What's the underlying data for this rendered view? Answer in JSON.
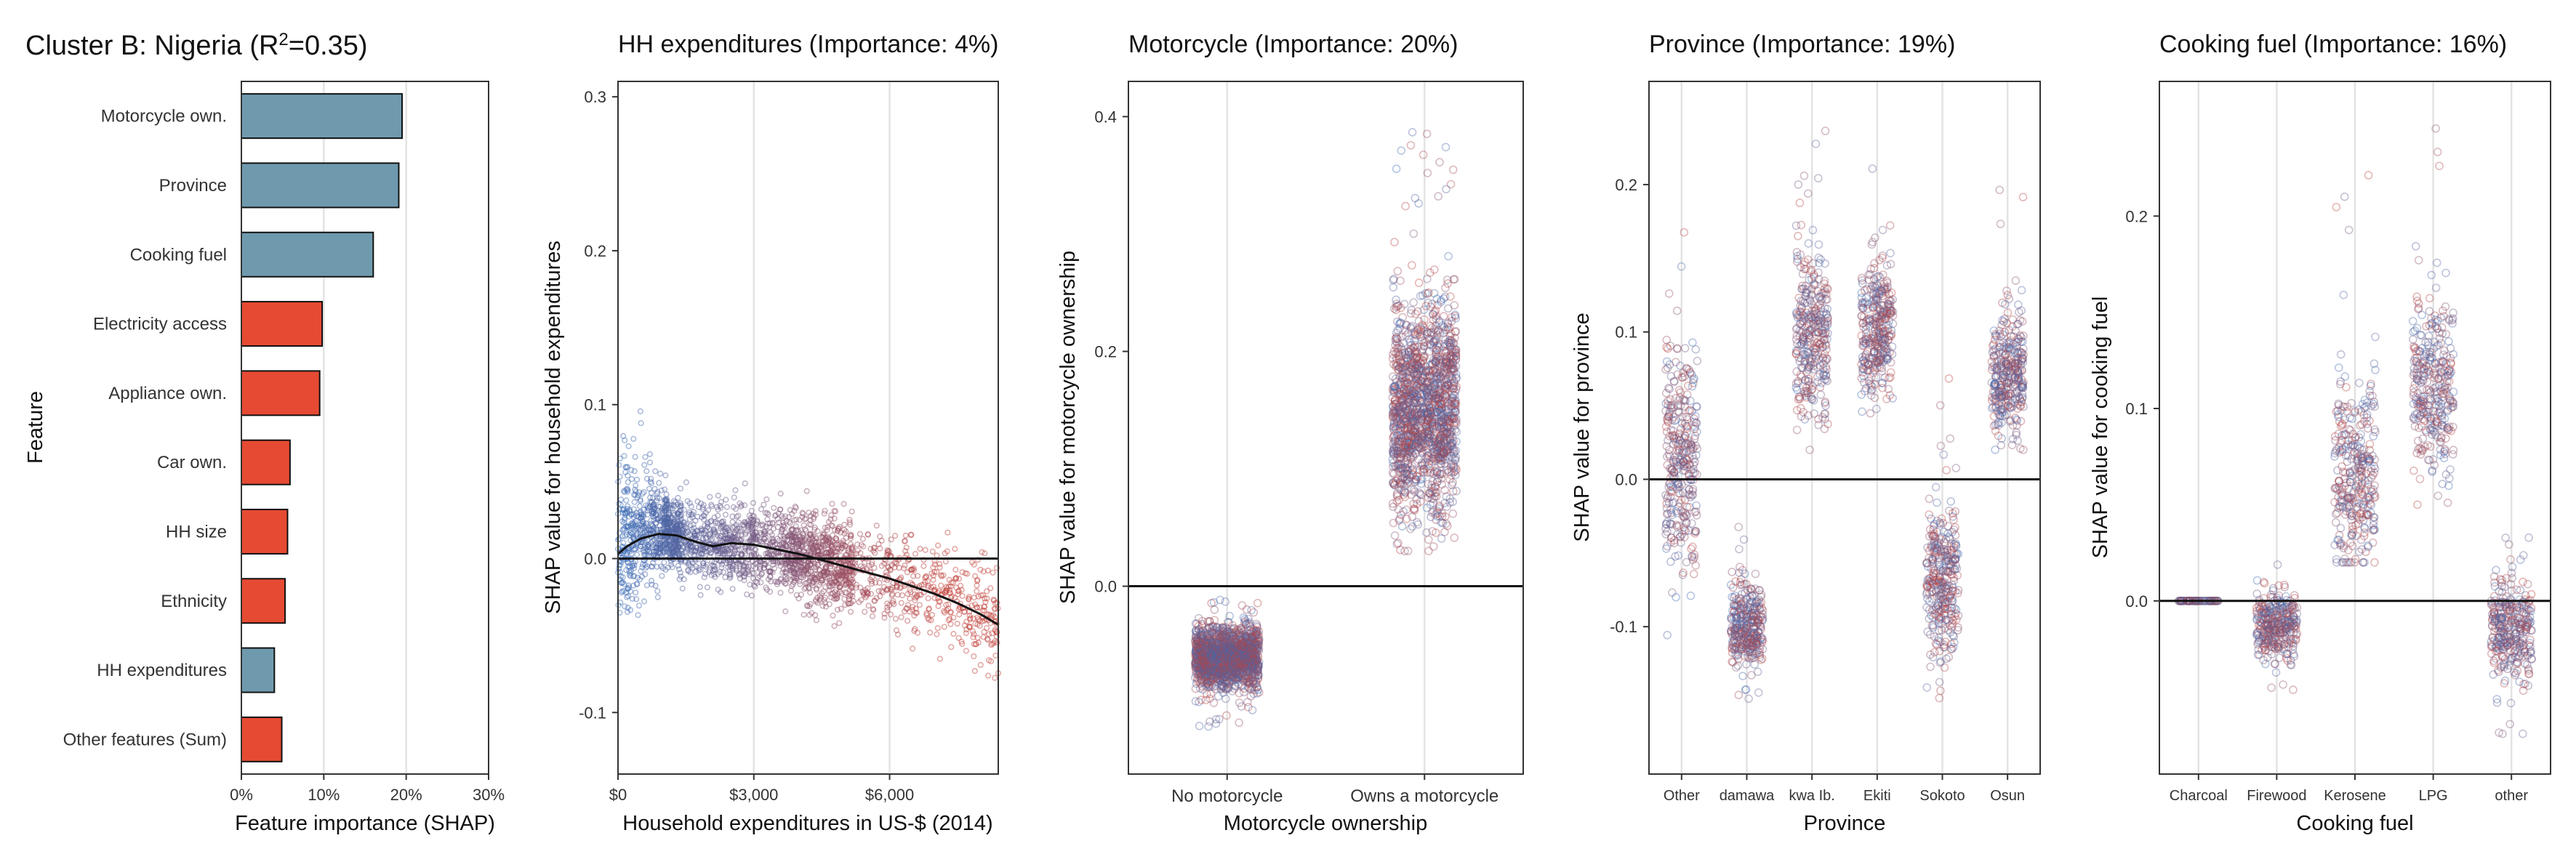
{
  "colors": {
    "blue": "#6f9aae",
    "red": "#e64a32",
    "low": "#3a6cb8",
    "high": "#c0403a",
    "zero_line": "#111111"
  },
  "chart_data": [
    {
      "type": "bar",
      "orientation": "horizontal",
      "title": "Cluster B: Nigeria (R",
      "title_sup": "2",
      "title_suffix": "=0.35)",
      "xlabel": "Feature importance (SHAP)",
      "ylabel": "Feature",
      "xlim": [
        0,
        30
      ],
      "xticks": [
        0,
        10,
        20,
        30
      ],
      "xtick_labels": [
        "0%",
        "10%",
        "20%",
        "30%"
      ],
      "categories": [
        "Motorcycle own.",
        "Province",
        "Cooking fuel",
        "Electricity access",
        "Appliance own.",
        "Car own.",
        "HH size",
        "Ethnicity",
        "HH expenditures",
        "Other features (Sum)"
      ],
      "values": [
        19.5,
        19.1,
        16.0,
        9.8,
        9.5,
        5.9,
        5.6,
        5.3,
        4.0,
        4.9
      ],
      "bar_colors": [
        "blue",
        "blue",
        "blue",
        "red",
        "red",
        "red",
        "red",
        "red",
        "blue",
        "red"
      ],
      "grid": true
    },
    {
      "type": "scatter",
      "title": "HH expenditures (Importance: 4%)",
      "xlabel": "Household expenditures in US-$ (2014)",
      "ylabel": "SHAP value for household expenditures",
      "xlim": [
        0,
        8400
      ],
      "ylim": [
        -0.14,
        0.31
      ],
      "xticks": [
        0,
        3000,
        6000
      ],
      "xtick_labels": [
        "$0",
        "$3,000",
        "$6,000"
      ],
      "yticks": [
        -0.1,
        0.0,
        0.1,
        0.2,
        0.3
      ],
      "ytick_labels": [
        "-0.1",
        "0.0",
        "0.1",
        "0.2",
        "0.3"
      ],
      "trend_line": {
        "x": [
          0,
          200,
          500,
          900,
          1300,
          1700,
          2100,
          2500,
          3000,
          3500,
          4000,
          4500,
          5000,
          5500,
          6000,
          6500,
          7000,
          7500,
          8000,
          8400
        ],
        "y": [
          0.003,
          0.008,
          0.013,
          0.016,
          0.015,
          0.011,
          0.008,
          0.01,
          0.009,
          0.006,
          0.003,
          -0.001,
          -0.005,
          -0.009,
          -0.013,
          -0.018,
          -0.023,
          -0.029,
          -0.036,
          -0.043
        ]
      },
      "grid": true
    },
    {
      "type": "scatter",
      "title": "Motorcycle (Importance: 20%)",
      "xlabel": "Motorcycle ownership",
      "ylabel": "SHAP value for motorcycle ownership",
      "categories": [
        "No motorcycle",
        "Owns a motorcycle"
      ],
      "ylim": [
        -0.16,
        0.43
      ],
      "yticks": [
        0.0,
        0.2,
        0.4
      ],
      "ytick_labels": [
        "0.0",
        "0.2",
        "0.4"
      ],
      "ranges": [
        [
          -0.12,
          -0.01
        ],
        [
          0.03,
          0.39
        ]
      ],
      "centers": [
        -0.06,
        0.15
      ],
      "grid": true
    },
    {
      "type": "scatter",
      "title": "Province (Importance: 19%)",
      "xlabel": "Province",
      "ylabel": "SHAP value for province",
      "categories": [
        "Other",
        "damawa",
        "kwa Ib.",
        "Ekiti",
        "Sokoto",
        "Osun"
      ],
      "ylim": [
        -0.2,
        0.27
      ],
      "yticks": [
        -0.1,
        0.0,
        0.1,
        0.2
      ],
      "ytick_labels": [
        "-0.1",
        "0.0",
        "0.1",
        "0.2"
      ],
      "ranges": [
        [
          -0.11,
          0.2
        ],
        [
          -0.15,
          -0.03
        ],
        [
          0.02,
          0.24
        ],
        [
          0.03,
          0.22
        ],
        [
          -0.15,
          0.07
        ],
        [
          0.02,
          0.2
        ]
      ],
      "centers": [
        0.01,
        -0.1,
        0.1,
        0.1,
        -0.07,
        0.07
      ],
      "grid": true
    },
    {
      "type": "scatter",
      "title": "Cooking fuel (Importance: 16%)",
      "xlabel": "Cooking fuel",
      "ylabel": "SHAP value for cooking fuel",
      "categories": [
        "Charcoal",
        "Firewood",
        "Kerosene",
        "LPG",
        "other"
      ],
      "ylim": [
        -0.09,
        0.27
      ],
      "yticks": [
        0.0,
        0.1,
        0.2
      ],
      "ytick_labels": [
        "0.0",
        "0.1",
        "0.2"
      ],
      "ranges": [
        [
          0.0,
          0.0
        ],
        [
          -0.05,
          0.02
        ],
        [
          0.02,
          0.23
        ],
        [
          0.05,
          0.25
        ],
        [
          -0.07,
          0.04
        ]
      ],
      "centers": [
        0.0,
        -0.013,
        0.065,
        0.11,
        -0.015
      ],
      "grid": true
    }
  ]
}
